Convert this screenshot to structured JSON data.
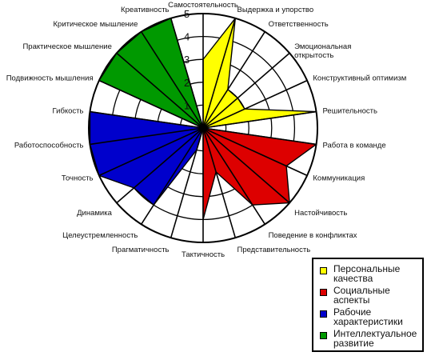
{
  "chart_data": {
    "type": "radar",
    "r_ticks": [
      "1",
      "2",
      "3",
      "4",
      "5"
    ],
    "rmax": 5,
    "axes": [
      "Самостоятельность",
      "Выдержка и упорство",
      "Ответственность",
      "Эмоциональная\nоткрытость",
      "Конструктивный оптимизм",
      "Решительность",
      "Работа в команде",
      "Коммуникация",
      "Настойчивость",
      "Поведение в конфликтах",
      "Представительность",
      "Тактичность",
      "Прагматичность",
      "Целеустремленность",
      "Динамика",
      "Точность",
      "Работоспособность",
      "Гибкость",
      "Подвижность мышления",
      "Практическое мышление",
      "Критическое мышление",
      "Креативность"
    ],
    "series": [
      {
        "name": "Персональные\nкачества",
        "color": "#ffff00",
        "indices": [
          0,
          1,
          2,
          3,
          4,
          5
        ],
        "values": [
          3.0,
          5.0,
          2.0,
          2.0,
          2.0,
          5.0
        ]
      },
      {
        "name": "Социальные\nаспекты",
        "color": "#dd0000",
        "indices": [
          6,
          7,
          8,
          9,
          10,
          11
        ],
        "values": [
          5.0,
          4.0,
          5.0,
          4.0,
          2.0,
          4.0
        ]
      },
      {
        "name": "Рабочие\nхарактеристики",
        "color": "#0000cc",
        "indices": [
          12,
          13,
          14,
          15,
          16,
          17
        ],
        "values": [
          1.0,
          4.0,
          4.0,
          5.0,
          5.0,
          5.0
        ]
      },
      {
        "name": "Интеллектуальное\nразвитие",
        "color": "#009900",
        "indices": [
          18,
          19,
          20,
          21
        ],
        "values": [
          5.0,
          5.0,
          5.0,
          5.0
        ]
      }
    ]
  }
}
